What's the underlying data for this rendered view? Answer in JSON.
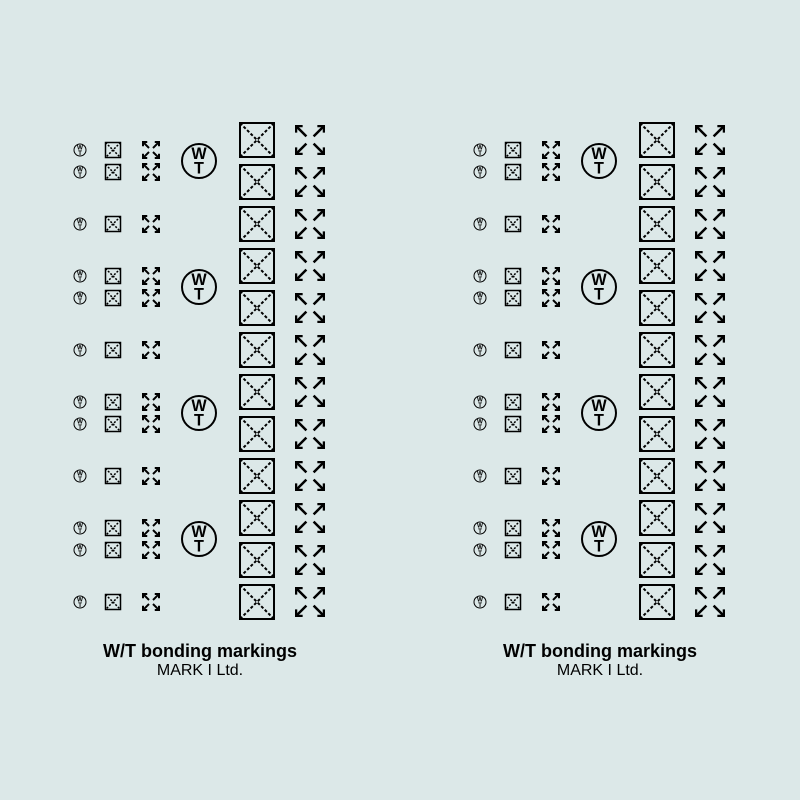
{
  "title": "W/T bonding markings",
  "subtitle": "MARK I Ltd.",
  "colors": {
    "background": "#dce8e8",
    "symbol": "#000000"
  },
  "font": {
    "title_size": 18,
    "title_weight": "bold",
    "subtitle_size": 16
  },
  "sheet_count": 2,
  "rows_per_sheet": 8,
  "double_rows": [
    0,
    2,
    4,
    6
  ],
  "symbols": {
    "wt_circle_small": {
      "type": "circle_wt",
      "diameter": 14
    },
    "diag_box_small": {
      "type": "diag_box",
      "size": 18
    },
    "arrows_out_small": {
      "type": "arrows_out",
      "size": 18
    },
    "wt_circle_large": {
      "type": "circle_wt",
      "diameter": 36
    },
    "diag_box_large": {
      "type": "diag_box",
      "size": 38
    },
    "arrows_out_large": {
      "type": "arrows_out",
      "size": 30
    }
  }
}
